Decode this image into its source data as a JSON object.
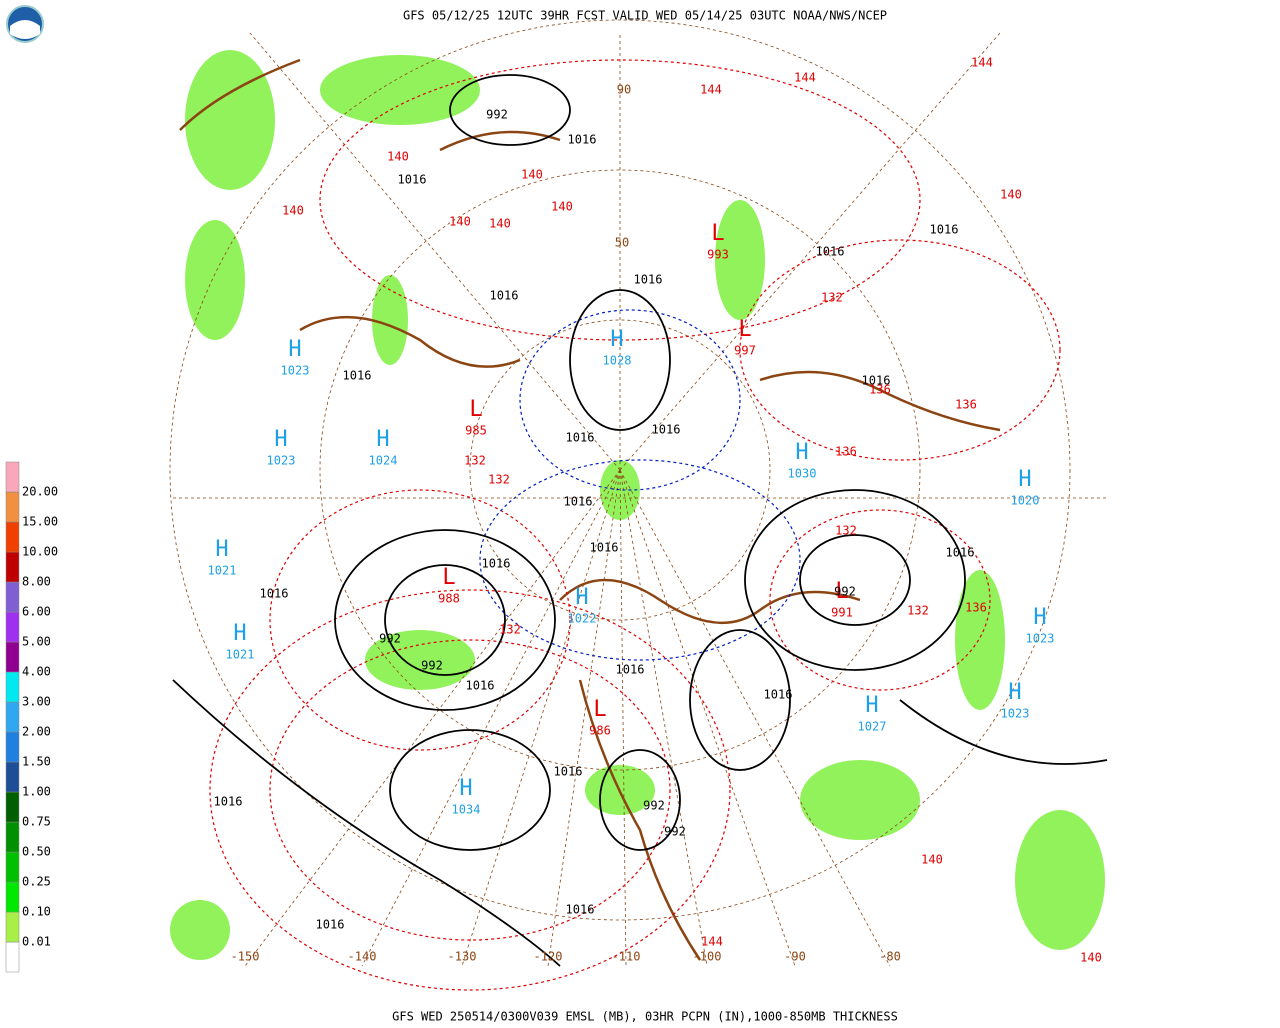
{
  "header": {
    "title": "GFS 05/12/25 12UTC 39HR FCST VALID WED 05/14/25 03UTC NOAA/NWS/NCEP"
  },
  "footer": {
    "caption": "GFS WED 250514/0300V039 EMSL (MB), 03HR PCPN (IN),1000-850MB THICKNESS"
  },
  "legend": {
    "levels": [
      "0.01",
      "0.10",
      "0.25",
      "0.50",
      "0.75",
      "1.00",
      "1.50",
      "2.00",
      "3.00",
      "4.00",
      "5.00",
      "6.00",
      "8.00",
      "10.00",
      "15.00",
      "20.00"
    ],
    "colors": [
      "#ffffff",
      "#a8f048",
      "#00e800",
      "#00c000",
      "#009000",
      "#006000",
      "#1e4e96",
      "#2080e0",
      "#30a8f0",
      "#00e8f0",
      "#900090",
      "#a030f0",
      "#8060d0",
      "#c00000",
      "#f04000",
      "#f09040",
      "#f8a8b8"
    ]
  },
  "map": {
    "high_centers": [
      {
        "letter": "H",
        "value": 1023
      },
      {
        "letter": "H",
        "value": 1023
      },
      {
        "letter": "H",
        "value": 1021
      },
      {
        "letter": "H",
        "value": 1021
      },
      {
        "letter": "H",
        "value": 1034
      },
      {
        "letter": "H",
        "value": 1024
      },
      {
        "letter": "H",
        "value": 1028
      },
      {
        "letter": "H",
        "value": 1030
      },
      {
        "letter": "H",
        "value": 1020
      },
      {
        "letter": "H",
        "value": 1023
      },
      {
        "letter": "H",
        "value": 1023
      },
      {
        "letter": "H",
        "value": 1027
      },
      {
        "letter": "H",
        "value": 1022
      }
    ],
    "low_centers": [
      {
        "letter": "L",
        "value": 988
      },
      {
        "letter": "L",
        "value": 986
      },
      {
        "letter": "L",
        "value": 985
      },
      {
        "letter": "L",
        "value": 991
      },
      {
        "letter": "L",
        "value": 997
      },
      {
        "letter": "L",
        "value": 993
      }
    ],
    "isobar_labels": [
      1016,
      1016,
      1016,
      1016,
      1016,
      1016,
      1016,
      1016,
      1016,
      1016,
      1016,
      1016,
      1016,
      1016,
      1016,
      1016,
      1016,
      1016,
      1016,
      1016,
      1016,
      1016,
      992,
      992,
      992,
      992,
      992,
      992
    ],
    "thickness_labels": [
      140,
      140,
      140,
      140,
      140,
      140,
      140,
      144,
      144,
      144,
      144,
      132,
      132,
      132,
      132,
      132,
      132,
      136,
      136,
      136,
      136,
      140,
      140
    ],
    "longitude_labels": [
      -150,
      -140,
      -130,
      -120,
      -110,
      -100,
      -90,
      -80
    ],
    "latitude_labels": [
      90,
      50
    ]
  }
}
